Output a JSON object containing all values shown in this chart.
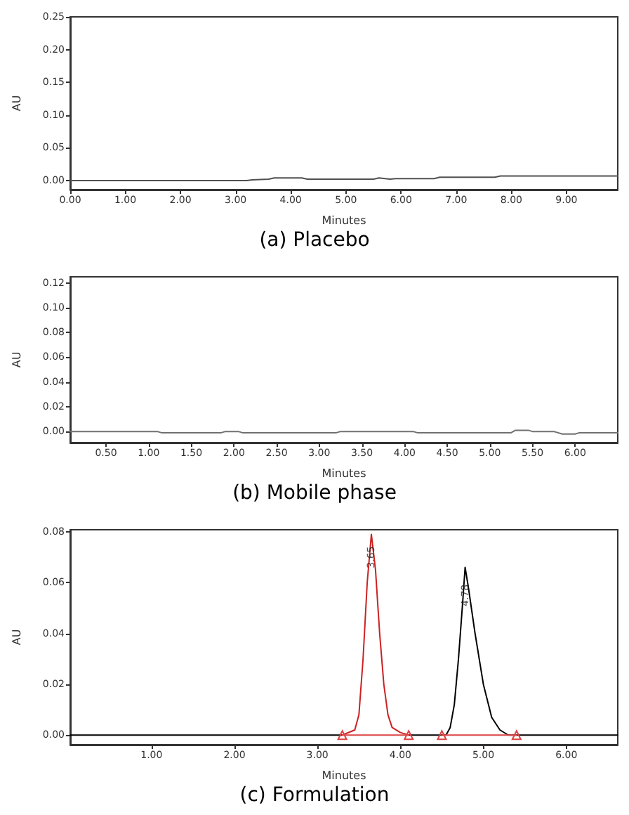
{
  "chart_data": [
    {
      "type": "line",
      "title": "(a) Placebo",
      "xlabel": "Minutes",
      "ylabel": "AU",
      "grid": false,
      "marker": "none",
      "xlim": [
        0,
        9.93
      ],
      "ylim": [
        -0.014,
        0.25
      ],
      "xticks": [
        {
          "value": 0,
          "label": "0.00"
        },
        {
          "value": 1,
          "label": "1.00"
        },
        {
          "value": 2,
          "label": "2.00"
        },
        {
          "value": 3,
          "label": "3.00"
        },
        {
          "value": 4,
          "label": "4.00"
        },
        {
          "value": 5,
          "label": "5.00"
        },
        {
          "value": 6,
          "label": "6.00"
        },
        {
          "value": 7,
          "label": "7.00"
        },
        {
          "value": 8,
          "label": "8.00"
        },
        {
          "value": 9,
          "label": "9.00"
        }
      ],
      "yticks": [
        {
          "value": 0,
          "label": "0.00"
        },
        {
          "value": 0.05,
          "label": "0.05"
        },
        {
          "value": 0.1,
          "label": "0.10"
        },
        {
          "value": 0.15,
          "label": "0.15"
        },
        {
          "value": 0.2,
          "label": "0.20"
        },
        {
          "value": 0.25,
          "label": "0.25"
        }
      ],
      "series": [
        {
          "color": "#505050",
          "x": [
            0,
            3.2,
            3.3,
            3.6,
            3.7,
            4.2,
            4.3,
            5.5,
            5.6,
            5.8,
            5.9,
            6.6,
            6.7,
            7.7,
            7.8,
            9.93
          ],
          "values": [
            0,
            0,
            0.001,
            0.002,
            0.004,
            0.004,
            0.002,
            0.002,
            0.004,
            0.002,
            0.003,
            0.003,
            0.005,
            0.005,
            0.007,
            0.007
          ]
        }
      ]
    },
    {
      "type": "line",
      "title": "(b) Mobile phase",
      "xlabel": "Minutes",
      "ylabel": "AU",
      "grid": false,
      "marker": "none",
      "xlim": [
        0.08,
        6.5
      ],
      "ylim": [
        -0.009,
        0.125
      ],
      "xticks": [
        {
          "value": 0.5,
          "label": "0.50"
        },
        {
          "value": 1,
          "label": "1.00"
        },
        {
          "value": 1.5,
          "label": "1.50"
        },
        {
          "value": 2,
          "label": "2.00"
        },
        {
          "value": 2.5,
          "label": "2.50"
        },
        {
          "value": 3,
          "label": "3.00"
        },
        {
          "value": 3.5,
          "label": "3.50"
        },
        {
          "value": 4,
          "label": "4.00"
        },
        {
          "value": 4.5,
          "label": "4.50"
        },
        {
          "value": 5,
          "label": "5.00"
        },
        {
          "value": 5.5,
          "label": "5.50"
        },
        {
          "value": 6,
          "label": "6.00"
        }
      ],
      "yticks": [
        {
          "value": 0,
          "label": "0.00"
        },
        {
          "value": 0.02,
          "label": "0.02"
        },
        {
          "value": 0.04,
          "label": "0.04"
        },
        {
          "value": 0.06,
          "label": "0.06"
        },
        {
          "value": 0.08,
          "label": "0.08"
        },
        {
          "value": 0.1,
          "label": "0.10"
        },
        {
          "value": 0.12,
          "label": "0.12"
        }
      ],
      "series": [
        {
          "color": "#707070",
          "x": [
            0.08,
            1.1,
            1.15,
            1.85,
            1.9,
            2.05,
            2.1,
            3.2,
            3.25,
            4.1,
            4.15,
            5.25,
            5.3,
            5.45,
            5.5,
            5.75,
            5.85,
            6.0,
            6.05,
            6.5
          ],
          "values": [
            0,
            0,
            -0.001,
            -0.001,
            0,
            0,
            -0.001,
            -0.001,
            0,
            0,
            -0.001,
            -0.001,
            0.001,
            0.001,
            0,
            0,
            -0.002,
            -0.002,
            -0.001,
            -0.001
          ]
        }
      ]
    },
    {
      "type": "line",
      "title": "(c) Formulation",
      "xlabel": "Minutes",
      "ylabel": "AU",
      "grid": false,
      "marker": "none",
      "xlim": [
        0.02,
        6.62
      ],
      "ylim": [
        -0.0038,
        0.0808
      ],
      "xticks": [
        {
          "value": 1,
          "label": "1.00"
        },
        {
          "value": 2,
          "label": "2.00"
        },
        {
          "value": 3,
          "label": "3.00"
        },
        {
          "value": 4,
          "label": "4.00"
        },
        {
          "value": 5,
          "label": "5.00"
        },
        {
          "value": 6,
          "label": "6.00"
        }
      ],
      "yticks": [
        {
          "value": 0,
          "label": "0.00"
        },
        {
          "value": 0.02,
          "label": "0.02"
        },
        {
          "value": 0.04,
          "label": "0.04"
        },
        {
          "value": 0.06,
          "label": "0.06"
        },
        {
          "value": 0.08,
          "label": "0.08"
        }
      ],
      "annotations": [
        {
          "text": "3.65",
          "x": 3.65,
          "y": 0.07
        },
        {
          "text": "4.78",
          "x": 4.78,
          "y": 0.055
        }
      ],
      "series": [
        {
          "color": "#000000",
          "x": [
            0.02,
            3.3,
            3.31,
            4.1,
            4.55,
            4.6,
            4.65,
            4.7,
            4.75,
            4.78,
            4.82,
            4.9,
            5.0,
            5.1,
            5.2,
            5.3,
            6.62
          ],
          "values": [
            0,
            0,
            null,
            0,
            0,
            0.003,
            0.012,
            0.03,
            0.052,
            0.066,
            0.058,
            0.04,
            0.02,
            0.007,
            0.002,
            0,
            0
          ]
        },
        {
          "color": "#cc2222",
          "x": [
            3.3,
            3.45,
            3.5,
            3.55,
            3.6,
            3.65,
            3.7,
            3.75,
            3.8,
            3.85,
            3.9,
            4.0,
            4.1
          ],
          "values": [
            0,
            0.002,
            0.008,
            0.03,
            0.06,
            0.079,
            0.065,
            0.04,
            0.02,
            0.008,
            0.003,
            0.001,
            0
          ]
        },
        {
          "color": "#dd4444",
          "marker": "triangle",
          "x": [
            3.3,
            4.1,
            4.3,
            4.5,
            5.4
          ],
          "values": [
            0,
            0,
            null,
            0,
            0
          ]
        }
      ]
    }
  ]
}
